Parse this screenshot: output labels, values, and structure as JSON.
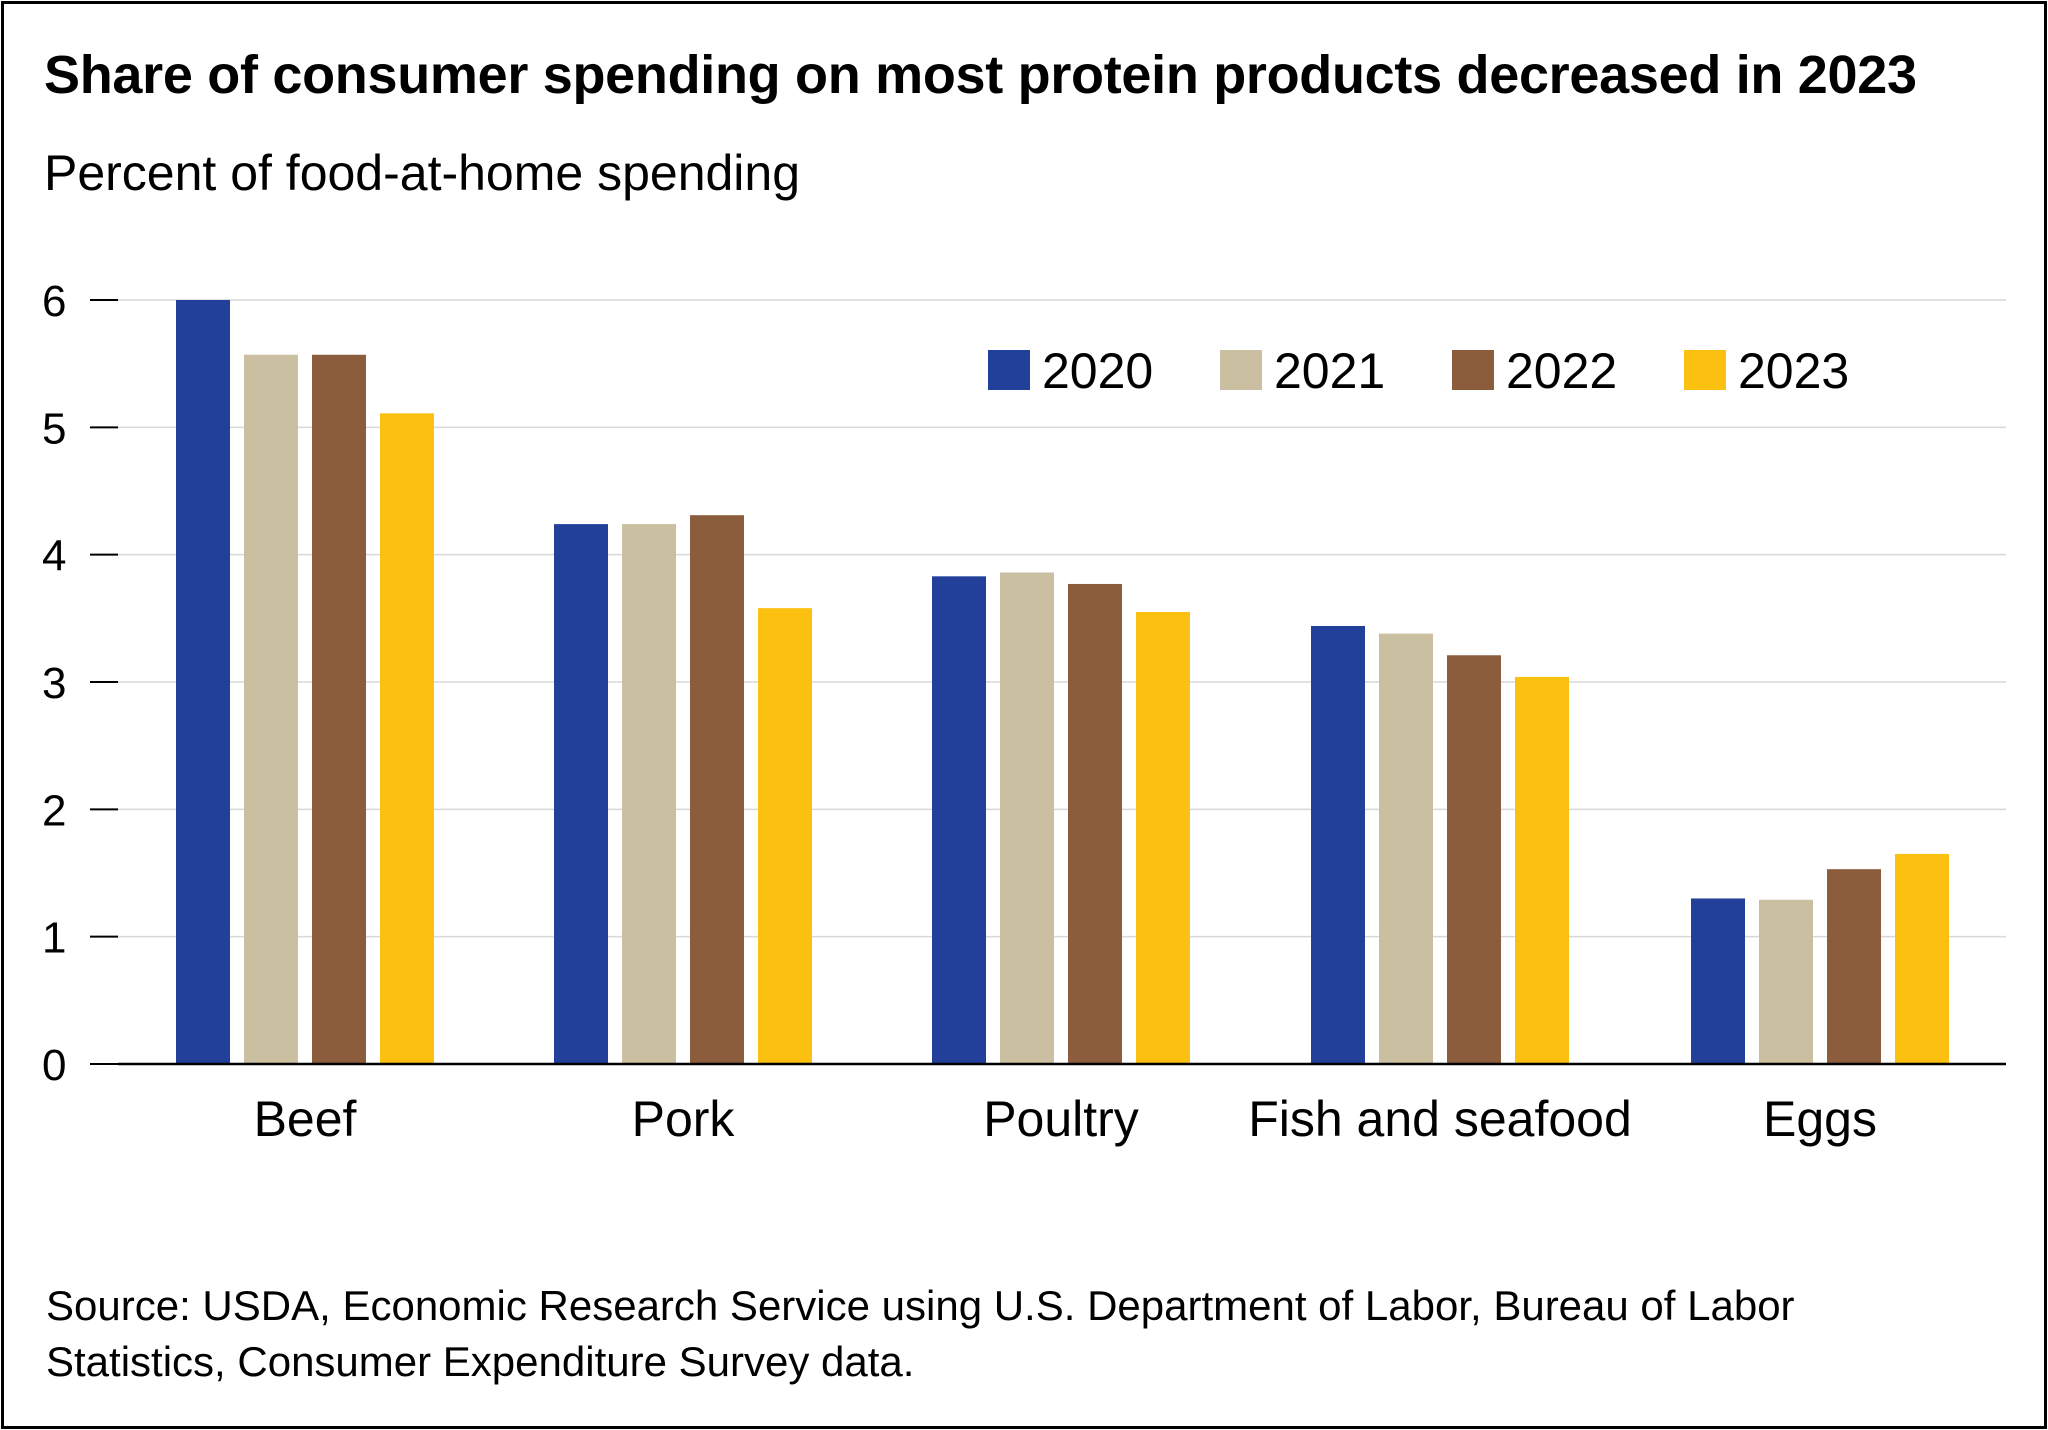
{
  "chart_data": {
    "type": "bar",
    "title": "Share of consumer spending on most protein products decreased in 2023",
    "ylabel": "Percent of food-at-home spending",
    "xlabel": "",
    "categories": [
      "Beef",
      "Pork",
      "Poultry",
      "Fish and seafood",
      "Eggs"
    ],
    "series": [
      {
        "name": "2020",
        "color": "#22409a",
        "values": [
          6.0,
          4.24,
          3.83,
          3.44,
          1.3
        ]
      },
      {
        "name": "2021",
        "color": "#cbbfa2",
        "values": [
          5.57,
          4.24,
          3.86,
          3.38,
          1.29
        ]
      },
      {
        "name": "2022",
        "color": "#8b5d3c",
        "values": [
          5.57,
          4.31,
          3.77,
          3.21,
          1.53
        ]
      },
      {
        "name": "2023",
        "color": "#fcc010",
        "values": [
          5.11,
          3.58,
          3.55,
          3.04,
          1.65
        ]
      }
    ],
    "ylim": [
      0,
      6
    ],
    "yticks": [
      "0",
      "1",
      "2",
      "3",
      "4",
      "5",
      "6"
    ],
    "grid": true,
    "legend_position": "top-right"
  },
  "source_text": "Source: USDA, Economic Research Service using U.S. Department of Labor, Bureau of Labor Statistics, Consumer Expenditure Survey data."
}
